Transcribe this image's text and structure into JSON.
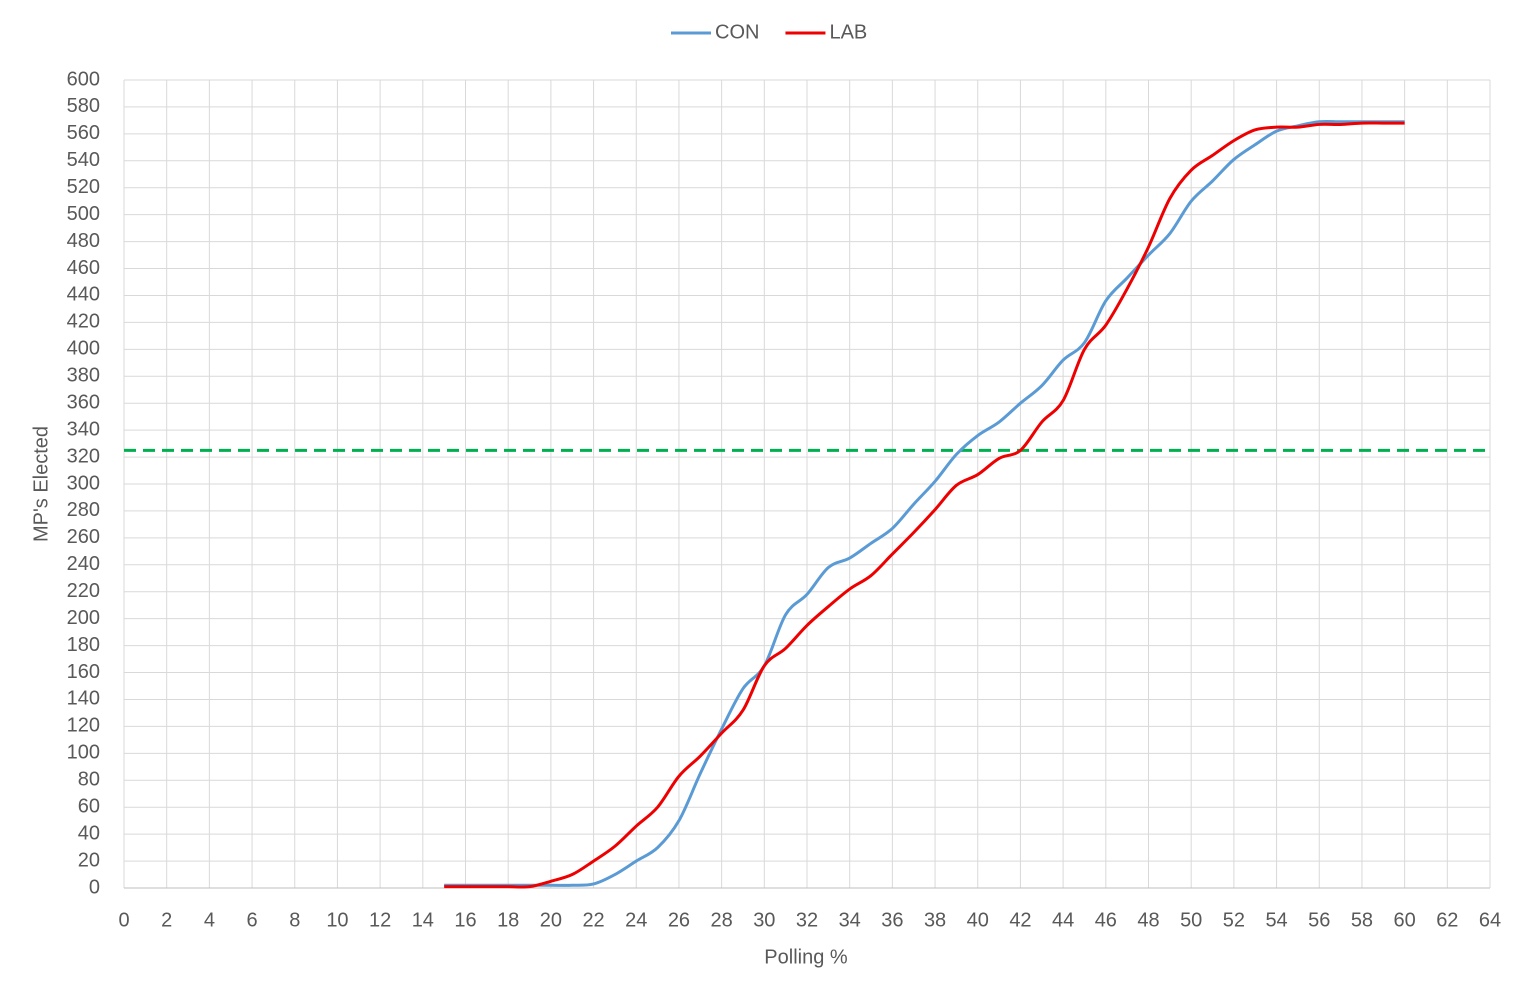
{
  "chart_data": {
    "type": "line",
    "x_label": "Polling %",
    "y_label": "MP's Elected",
    "x": [
      15,
      16,
      17,
      18,
      19,
      20,
      21,
      22,
      23,
      24,
      25,
      26,
      27,
      28,
      29,
      30,
      31,
      32,
      33,
      34,
      35,
      36,
      37,
      38,
      39,
      40,
      41,
      42,
      43,
      44,
      45,
      46,
      47,
      48,
      49,
      50,
      51,
      52,
      53,
      54,
      55,
      56,
      57,
      58,
      59,
      60
    ],
    "series": [
      {
        "name": "CON",
        "color": "#5b9bd5",
        "values": [
          2,
          2,
          2,
          2,
          2,
          2,
          2,
          3,
          10,
          20,
          30,
          50,
          85,
          118,
          148,
          165,
          203,
          218,
          238,
          245,
          256,
          267,
          285,
          302,
          322,
          336,
          346,
          360,
          373,
          392,
          405,
          436,
          453,
          470,
          486,
          510,
          525,
          541,
          552,
          562,
          566,
          569,
          569,
          569,
          569,
          569
        ]
      },
      {
        "name": "LAB",
        "color": "#ee0000",
        "values": [
          1,
          1,
          1,
          1,
          1,
          5,
          10,
          20,
          31,
          46,
          60,
          83,
          98,
          115,
          132,
          165,
          178,
          195,
          209,
          222,
          232,
          248,
          264,
          281,
          299,
          307,
          319,
          325,
          346,
          362,
          400,
          418,
          445,
          476,
          512,
          533,
          544,
          555,
          563,
          565,
          565,
          567,
          567,
          568,
          568,
          568
        ]
      }
    ],
    "reference_line": {
      "value": 325,
      "color": "#00b050",
      "dashed": true
    },
    "xlim": [
      0,
      64
    ],
    "xticks": [
      0,
      2,
      4,
      6,
      8,
      10,
      12,
      14,
      16,
      18,
      20,
      22,
      24,
      26,
      28,
      30,
      32,
      34,
      36,
      38,
      40,
      42,
      44,
      46,
      48,
      50,
      52,
      54,
      56,
      58,
      60,
      62,
      64
    ],
    "ylim": [
      0,
      600
    ],
    "yticks": [
      0,
      20,
      40,
      60,
      80,
      100,
      120,
      140,
      160,
      180,
      200,
      220,
      240,
      260,
      280,
      300,
      320,
      340,
      360,
      380,
      400,
      420,
      440,
      460,
      480,
      500,
      520,
      540,
      560,
      580,
      600
    ],
    "grid": true,
    "legend": "top"
  }
}
